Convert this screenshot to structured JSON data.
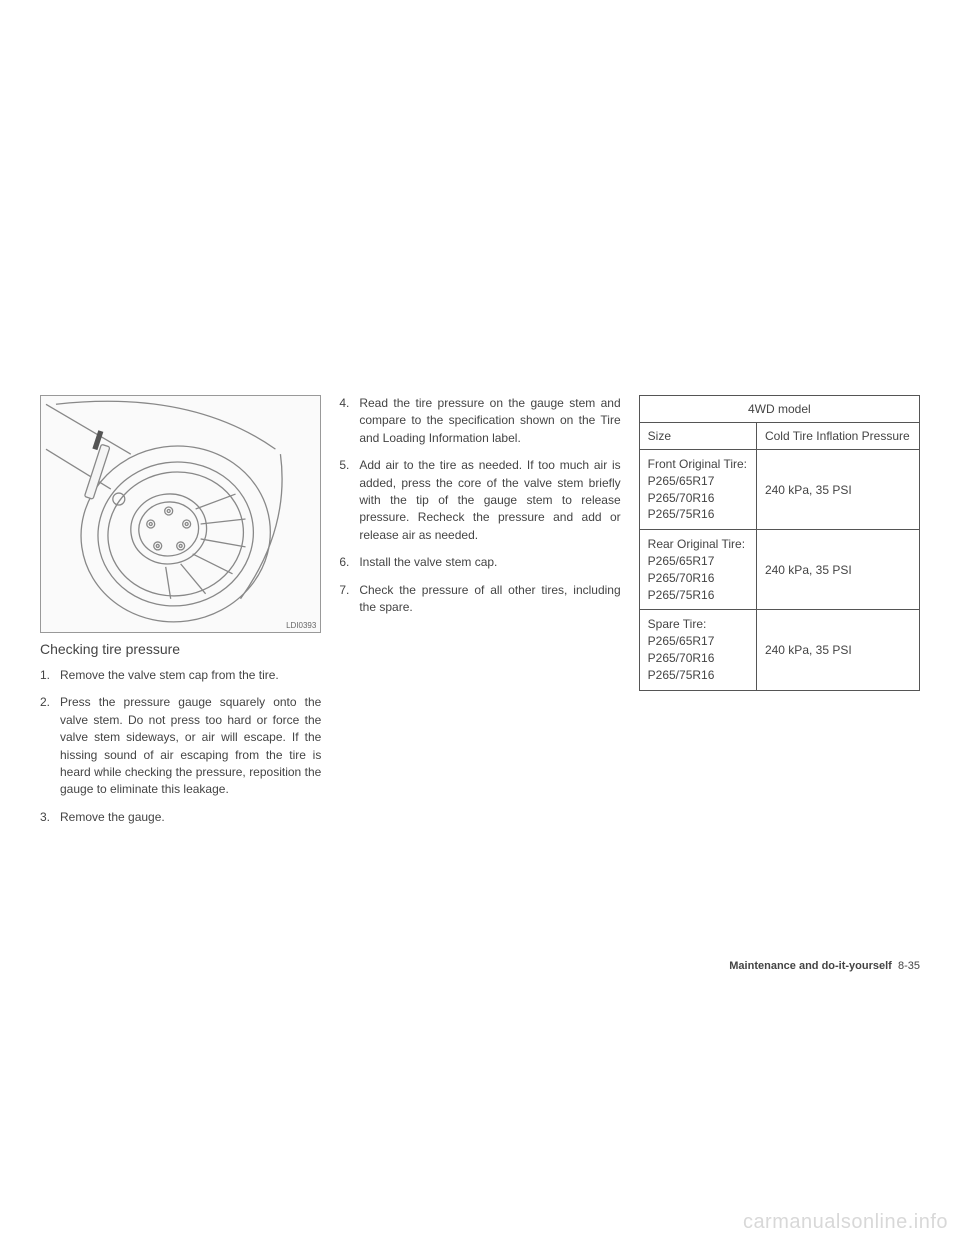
{
  "figure": {
    "label": "LDI0393",
    "svg": {
      "stroke": "#888888",
      "stroke_width": 1.2
    }
  },
  "section_title": "Checking tire pressure",
  "steps_col1": [
    {
      "num": "1.",
      "text": "Remove the valve stem cap from the tire."
    },
    {
      "num": "2.",
      "text": "Press the pressure gauge squarely onto the valve stem. Do not press too hard or force the valve stem sideways, or air will escape. If the hissing sound of air escaping from the tire is heard while checking the pressure, reposition the gauge to eliminate this leakage."
    },
    {
      "num": "3.",
      "text": "Remove the gauge."
    }
  ],
  "steps_col2": [
    {
      "num": "4.",
      "text": "Read the tire pressure on the gauge stem and compare to the specification shown on the Tire and Loading Information label."
    },
    {
      "num": "5.",
      "text": "Add air to the tire as needed. If too much air is added, press the core of the valve stem briefly with the tip of the gauge stem to release pressure. Recheck the pressure and add or release air as needed."
    },
    {
      "num": "6.",
      "text": "Install the valve stem cap."
    },
    {
      "num": "7.",
      "text": "Check the pressure of all other tires, including the spare."
    }
  ],
  "table": {
    "title": "4WD model",
    "header": {
      "size": "Size",
      "pressure": "Cold Tire Inflation Pressure"
    },
    "rows": [
      {
        "size": "Front Original Tire:\nP265/65R17\nP265/70R16\nP265/75R16",
        "pressure": "240 kPa, 35 PSI"
      },
      {
        "size": "Rear Original Tire:\nP265/65R17\nP265/70R16\nP265/75R16",
        "pressure": "240 kPa, 35 PSI"
      },
      {
        "size": "Spare Tire:\nP265/65R17\nP265/70R16\nP265/75R16",
        "pressure": "240 kPa, 35 PSI"
      }
    ]
  },
  "footer": {
    "section": "Maintenance and do-it-yourself",
    "page": "8-35"
  },
  "watermark": "carmanualsonline.info"
}
